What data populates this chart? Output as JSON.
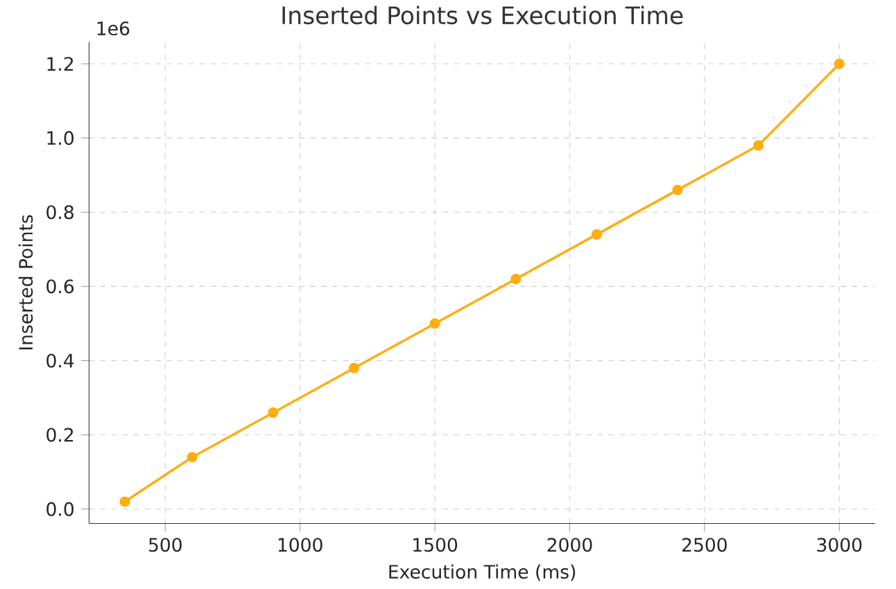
{
  "chart_data": {
    "type": "line",
    "title": "Inserted Points vs Execution Time",
    "xlabel": "Execution Time (ms)",
    "ylabel": "Inserted Points",
    "x": [
      350,
      600,
      900,
      1200,
      1500,
      1800,
      2100,
      2400,
      2700,
      3000
    ],
    "series": [
      {
        "color": "#ffad0f",
        "values": [
          0.02,
          0.14,
          0.26,
          0.38,
          0.5,
          0.62,
          0.74,
          0.86,
          0.98,
          1.2
        ]
      }
    ],
    "xlim": [
      217.5,
      3132.5
    ],
    "ylim": [
      -0.039,
      1.259
    ],
    "xticks": [
      500,
      1000,
      1500,
      2000,
      2500,
      3000
    ],
    "yticks": [
      {
        "value": 0,
        "label": "0.0"
      },
      {
        "value": 0.2,
        "label": "0.2"
      },
      {
        "value": 0.4,
        "label": "0.4"
      },
      {
        "value": 0.6,
        "label": "0.6"
      },
      {
        "value": 0.8,
        "label": "0.8"
      },
      {
        "value": 1.0,
        "label": "1.0"
      },
      {
        "value": 1.2,
        "label": "1.2"
      }
    ],
    "annotations": [
      "1e6"
    ],
    "grid": true,
    "marker": "circle",
    "line_style": "solid"
  }
}
